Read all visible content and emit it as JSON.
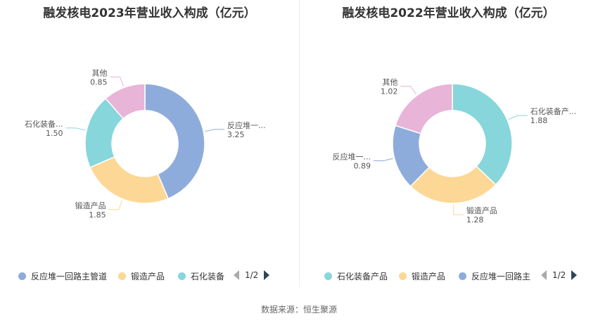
{
  "source": "数据来源：恒生聚源",
  "chart_data": [
    {
      "type": "pie",
      "title": "融发核电2023年营业收入构成（亿元）",
      "slices": [
        {
          "name": "反应堆一回路主管道",
          "label": "反应堆一...",
          "value": 3.25,
          "value_label": "3.25",
          "color": "#8eacdb"
        },
        {
          "name": "锻造产品",
          "label": "锻造产品",
          "value": 1.85,
          "value_label": "1.85",
          "color": "#fdd795"
        },
        {
          "name": "石化装备",
          "label": "石化装备...",
          "value": 1.5,
          "value_label": "1.50",
          "color": "#86d6db"
        },
        {
          "name": "其他",
          "label": "其他",
          "value": 0.85,
          "value_label": "0.85",
          "color": "#e8b4d7"
        }
      ],
      "legend": {
        "placement": "bottom",
        "items": [
          {
            "label": "反应堆一回路主管道",
            "color": "#8eacdb"
          },
          {
            "label": "锻造产品",
            "color": "#fdd795"
          },
          {
            "label": "石化装备",
            "color": "#86d6db"
          }
        ],
        "page": "1/2"
      }
    },
    {
      "type": "pie",
      "title": "融发核电2022年营业收入构成（亿元）",
      "slices": [
        {
          "name": "石化装备产品",
          "label": "石化装备产...",
          "value": 1.88,
          "value_label": "1.88",
          "color": "#86d6db"
        },
        {
          "name": "锻造产品",
          "label": "锻造产品",
          "value": 1.28,
          "value_label": "1.28",
          "color": "#fdd795"
        },
        {
          "name": "反应堆一回路主管道",
          "label": "反应堆一...",
          "value": 0.89,
          "value_label": "0.89",
          "color": "#8eacdb"
        },
        {
          "name": "其他",
          "label": "其他",
          "value": 1.02,
          "value_label": "1.02",
          "color": "#e8b4d7"
        }
      ],
      "legend": {
        "placement": "bottom",
        "items": [
          {
            "label": "石化装备产品",
            "color": "#86d6db"
          },
          {
            "label": "锻造产品",
            "color": "#fdd795"
          },
          {
            "label": "反应堆一回路主",
            "color": "#8eacdb"
          }
        ],
        "page": "1/2"
      }
    }
  ]
}
